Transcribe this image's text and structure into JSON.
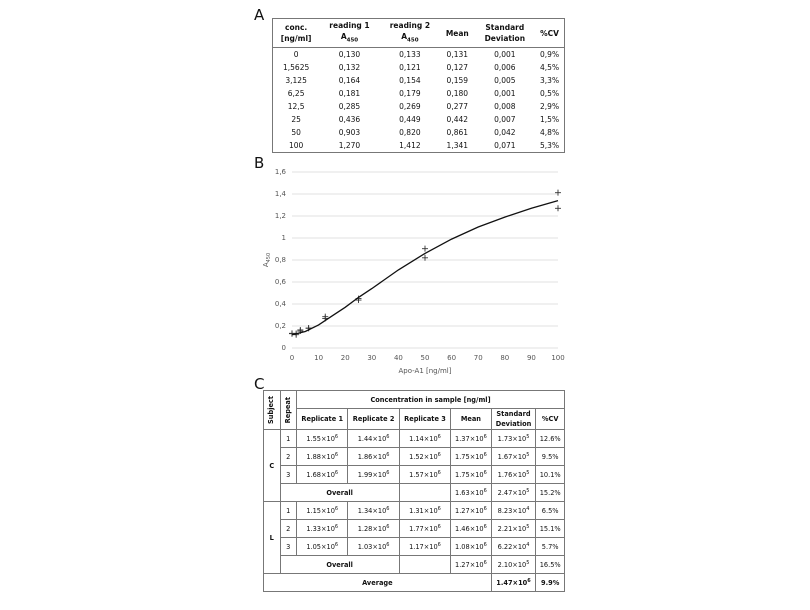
{
  "panel_a": {
    "label": "A",
    "table": {
      "header": [
        {
          "lines": [
            "conc.",
            "[ng/ml]"
          ]
        },
        {
          "lines": [
            "reading 1",
            "A"
          ],
          "sub": "450"
        },
        {
          "lines": [
            "reading 2",
            "A"
          ],
          "sub": "450"
        },
        {
          "lines": [
            "Mean"
          ]
        },
        {
          "lines": [
            "Standard",
            "Deviation"
          ]
        },
        {
          "lines": [
            "%CV"
          ]
        }
      ],
      "rows": [
        [
          "0",
          "0,130",
          "0,133",
          "0,131",
          "0,001",
          "0,9%"
        ],
        [
          "1,5625",
          "0,132",
          "0,121",
          "0,127",
          "0,006",
          "4,5%"
        ],
        [
          "3,125",
          "0,164",
          "0,154",
          "0,159",
          "0,005",
          "3,3%"
        ],
        [
          "6,25",
          "0,181",
          "0,179",
          "0,180",
          "0,001",
          "0,5%"
        ],
        [
          "12,5",
          "0,285",
          "0,269",
          "0,277",
          "0,008",
          "2,9%"
        ],
        [
          "25",
          "0,436",
          "0,449",
          "0,442",
          "0,007",
          "1,5%"
        ],
        [
          "50",
          "0,903",
          "0,820",
          "0,861",
          "0,042",
          "4,8%"
        ],
        [
          "100",
          "1,270",
          "1,412",
          "1,341",
          "0,071",
          "5,3%"
        ]
      ]
    }
  },
  "panel_b_label": "B",
  "chart_data": {
    "type": "scatter",
    "x_label": "Apo-A1 [ng/ml]",
    "y_label": {
      "text": "A",
      "sub": "450"
    },
    "xlim": [
      0,
      100
    ],
    "ylim": [
      0,
      1.6
    ],
    "xticks": [
      0,
      10,
      20,
      30,
      40,
      50,
      60,
      70,
      80,
      90,
      100
    ],
    "yticks": [
      0,
      {
        "value": 0.2,
        "label": "0,2"
      },
      {
        "value": 0.4,
        "label": "0,4"
      },
      {
        "value": 0.6,
        "label": "0,6"
      },
      {
        "value": 0.8,
        "label": "0,8"
      },
      1,
      {
        "value": 1.2,
        "label": "1,2"
      },
      {
        "value": 1.4,
        "label": "1,4"
      },
      {
        "value": 1.6,
        "label": "1,6"
      }
    ],
    "grid": true,
    "series": [
      {
        "type": "scatter",
        "color": "#333333",
        "x": [
          0,
          1.5625,
          3.125,
          6.25,
          12.5,
          25,
          50,
          100
        ],
        "values": [
          0.13,
          0.132,
          0.164,
          0.181,
          0.285,
          0.436,
          0.903,
          1.27
        ]
      },
      {
        "type": "scatter",
        "color": "#333333",
        "x": [
          0,
          1.5625,
          3.125,
          6.25,
          12.5,
          25,
          50,
          100
        ],
        "values": [
          0.133,
          0.121,
          0.154,
          0.179,
          0.269,
          0.449,
          0.82,
          1.412
        ]
      },
      {
        "type": "line",
        "color": "#111111",
        "x": [
          0,
          5,
          10,
          15,
          20,
          25,
          30,
          40,
          50,
          60,
          70,
          80,
          90,
          100
        ],
        "values": [
          0.12,
          0.15,
          0.21,
          0.29,
          0.37,
          0.46,
          0.54,
          0.71,
          0.86,
          0.99,
          1.1,
          1.19,
          1.27,
          1.34
        ]
      }
    ]
  },
  "panel_c": {
    "label": "C",
    "table": {
      "header": {
        "subject": "Subject",
        "repeat": "Repeat",
        "group": "Concentration in sample [ng/ml]",
        "columns": [
          {
            "lines": [
              "Replicate 1"
            ]
          },
          {
            "lines": [
              "Replicate 2"
            ]
          },
          {
            "lines": [
              "Replicate 3"
            ]
          },
          {
            "lines": [
              "Mean"
            ]
          },
          {
            "lines": [
              "Standard",
              "Deviation"
            ]
          },
          {
            "lines": [
              "%CV"
            ]
          }
        ]
      },
      "groups": [
        {
          "subject": "C",
          "repeats": [
            {
              "repeat": "1",
              "values": [
                [
                  "1.55×10",
                  "6"
                ],
                [
                  "1.44×10",
                  "6"
                ],
                [
                  "1.14×10",
                  "6"
                ],
                [
                  "1.37×10",
                  "6"
                ],
                [
                  "1.73×10",
                  "5"
                ]
              ],
              "cv": "12.6%"
            },
            {
              "repeat": "2",
              "values": [
                [
                  "1.88×10",
                  "6"
                ],
                [
                  "1.86×10",
                  "6"
                ],
                [
                  "1.52×10",
                  "6"
                ],
                [
                  "1.75×10",
                  "6"
                ],
                [
                  "1.67×10",
                  "5"
                ]
              ],
              "cv": "9.5%"
            },
            {
              "repeat": "3",
              "values": [
                [
                  "1.68×10",
                  "6"
                ],
                [
                  "1.99×10",
                  "6"
                ],
                [
                  "1.57×10",
                  "6"
                ],
                [
                  "1.75×10",
                  "6"
                ],
                [
                  "1.76×10",
                  "5"
                ]
              ],
              "cv": "10.1%"
            }
          ],
          "overall": {
            "label": "Overall",
            "mean": [
              "1.63×10",
              "6"
            ],
            "sd": [
              "2.47×10",
              "5"
            ],
            "cv": "15.2%"
          }
        },
        {
          "subject": "L",
          "repeats": [
            {
              "repeat": "1",
              "values": [
                [
                  "1.15×10",
                  "6"
                ],
                [
                  "1.34×10",
                  "6"
                ],
                [
                  "1.31×10",
                  "6"
                ],
                [
                  "1.27×10",
                  "6"
                ],
                [
                  "8.23×10",
                  "4"
                ]
              ],
              "cv": "6.5%"
            },
            {
              "repeat": "2",
              "values": [
                [
                  "1.33×10",
                  "6"
                ],
                [
                  "1.28×10",
                  "6"
                ],
                [
                  "1.77×10",
                  "6"
                ],
                [
                  "1.46×10",
                  "6"
                ],
                [
                  "2.21×10",
                  "5"
                ]
              ],
              "cv": "15.1%"
            },
            {
              "repeat": "3",
              "values": [
                [
                  "1.05×10",
                  "6"
                ],
                [
                  "1.03×10",
                  "6"
                ],
                [
                  "1.17×10",
                  "6"
                ],
                [
                  "1.08×10",
                  "6"
                ],
                [
                  "6.22×10",
                  "4"
                ]
              ],
              "cv": "5.7%"
            }
          ],
          "overall": {
            "label": "Overall",
            "mean": [
              "1.27×10",
              "6"
            ],
            "sd": [
              "2.10×10",
              "5"
            ],
            "cv": "16.5%"
          }
        }
      ],
      "average": {
        "label": "Average",
        "sd": [
          "1.47×10",
          "6"
        ],
        "cv": "9.9%"
      }
    }
  }
}
